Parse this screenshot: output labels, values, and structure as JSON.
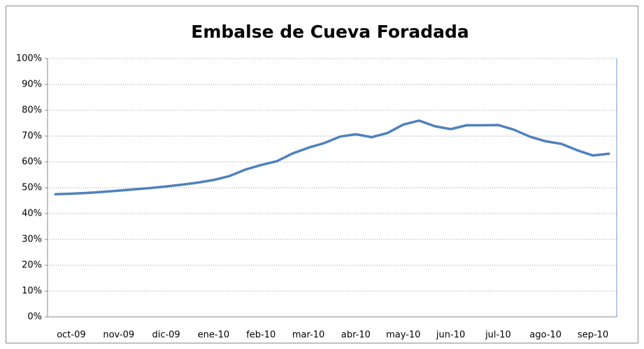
{
  "chart_data": {
    "type": "line",
    "title": "Embalse de Cueva Foradada",
    "categories": [
      null,
      "oct-09",
      null,
      null,
      "nov-09",
      null,
      null,
      "dic-09",
      null,
      null,
      "ene-10",
      null,
      null,
      "feb-10",
      null,
      null,
      "mar-10",
      null,
      null,
      "abr-10",
      null,
      null,
      "may-10",
      null,
      null,
      "jun-10",
      null,
      null,
      "jul-10",
      null,
      null,
      "ago-10",
      null,
      null,
      "sep-10",
      null
    ],
    "series": [
      {
        "name": "Embalse de Cueva Foradada",
        "color": "#4f81bd",
        "values": [
          47.5,
          47.7,
          48,
          48.4,
          48.9,
          49.4,
          49.9,
          50.5,
          51.2,
          52,
          53,
          54.5,
          57,
          58.8,
          60.3,
          63.3,
          65.5,
          67.3,
          69.8,
          70.7,
          69.6,
          71.2,
          74.5,
          76,
          73.8,
          72.7,
          74.2,
          74.2,
          74.3,
          72.5,
          69.8,
          68,
          67,
          64.5,
          62.5,
          63.2
        ]
      }
    ],
    "ylim": [
      0,
      100
    ],
    "yticks": [
      {
        "value": 0,
        "label": "0%"
      },
      {
        "value": 10,
        "label": "10%"
      },
      {
        "value": 20,
        "label": "20%"
      },
      {
        "value": 30,
        "label": "30%"
      },
      {
        "value": 40,
        "label": "40%"
      },
      {
        "value": 50,
        "label": "50%"
      },
      {
        "value": 60,
        "label": "60%"
      },
      {
        "value": 70,
        "label": "70%"
      },
      {
        "value": 80,
        "label": "80%"
      },
      {
        "value": 90,
        "label": "90%"
      },
      {
        "value": 100,
        "label": "100%"
      }
    ],
    "grid": true
  }
}
